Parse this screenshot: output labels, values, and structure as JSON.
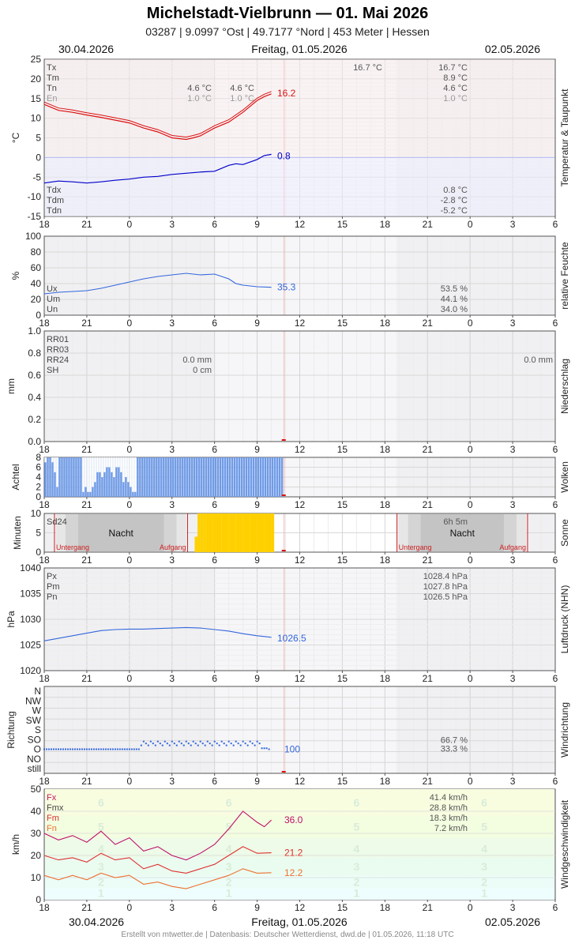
{
  "header": {
    "title": "Michelstadt-Vielbrunn  —  01. Mai 2026",
    "subtitle": "03287  |  9.0997 °Ost  |  49.7177 °Nord  |  453 Meter  |  Hessen"
  },
  "dates": {
    "left": "30.04.2026",
    "center": "Freitag, 01.05.2026",
    "right": "02.05.2026"
  },
  "footer": "Erstellt von mtwetter.de | Datenbasis: Deutscher Wetterdienst, dwd.de | 01.05.2026, 11:18 UTC",
  "x_ticks": [
    "18",
    "21",
    "0",
    "3",
    "6",
    "9",
    "12",
    "15",
    "18",
    "21",
    "0",
    "3",
    "6"
  ],
  "colors": {
    "temp": "#dd1111",
    "dew": "#0000cc",
    "hum": "#3366dd",
    "cloud": "#6f9be8",
    "sun": "#ffd000",
    "gust": "#c0106a",
    "wind_mean": "#e03030",
    "wind_min": "#ee7030"
  },
  "chart_data": [
    {
      "type": "line",
      "id": "temp",
      "ylabel": "°C",
      "side_label": "Temperatur & Taupunkt",
      "ylim": [
        -15,
        25
      ],
      "yticks": [
        "25",
        "20",
        "15",
        "10",
        "5",
        "0",
        "-5",
        "-10",
        "-15"
      ],
      "x_unit": "hours since 30.04.2026 18:00",
      "series": [
        {
          "name": "Temperatur",
          "x": [
            0,
            1,
            2,
            3,
            4,
            5,
            6,
            7,
            8,
            9,
            10,
            10.5,
            11,
            11.5,
            12,
            13,
            14,
            15,
            15.5,
            16
          ],
          "y": [
            13.5,
            12,
            11.5,
            10.8,
            10.2,
            9.5,
            8.8,
            7.5,
            6.5,
            5,
            4.6,
            5,
            5.5,
            6.5,
            7.5,
            9,
            11.5,
            14.5,
            15.5,
            16.2
          ]
        },
        {
          "name": "Taupunkt",
          "x": [
            0,
            1,
            2,
            3,
            4,
            5,
            6,
            7,
            8,
            9,
            10,
            11,
            12,
            13,
            13.5,
            14,
            15,
            15.5,
            16
          ],
          "y": [
            -6.5,
            -6,
            -6.2,
            -6.5,
            -6.2,
            -5.8,
            -5.5,
            -5,
            -4.8,
            -4.3,
            -4,
            -3.7,
            -3.5,
            -2,
            -1.6,
            -1.8,
            -0.5,
            0.5,
            0.8
          ]
        }
      ],
      "last_values": [
        "16.2",
        "0.8"
      ],
      "stats_top": [
        {
          "label": "Tx",
          "v1": "",
          "v2": "",
          "v3": "16.7 °C",
          "v4": "16.7 °C"
        },
        {
          "label": "Tm",
          "v1": "",
          "v2": "",
          "v3": "",
          "v4": "8.9 °C"
        },
        {
          "label": "Tn",
          "v1": "4.6 °C",
          "v2": "4.6 °C",
          "v3": "",
          "v4": "4.6 °C"
        },
        {
          "label": "En",
          "v1": "1.0 °C",
          "v2": "1.0 °C",
          "v3": "",
          "v4": "1.0 °C"
        }
      ],
      "stats_bottom": [
        {
          "label": "Tdx",
          "v": "0.8 °C"
        },
        {
          "label": "Tdm",
          "v": "-2.8 °C"
        },
        {
          "label": "Tdn",
          "v": "-5.2 °C"
        }
      ]
    },
    {
      "type": "line",
      "id": "hum",
      "ylabel": "%",
      "side_label": "relative Feuchte",
      "ylim": [
        0,
        100
      ],
      "yticks": [
        "100",
        "80",
        "60",
        "40",
        "20",
        "0"
      ],
      "series": [
        {
          "name": "Feuchte",
          "x": [
            0,
            1,
            2,
            3,
            4,
            5,
            6,
            7,
            8,
            9,
            10,
            11,
            12,
            13,
            13.5,
            14,
            15,
            16
          ],
          "y": [
            27,
            29,
            30,
            31,
            34,
            38,
            42,
            46,
            49,
            51,
            53,
            51,
            52,
            46,
            40,
            38,
            36,
            35.3
          ]
        }
      ],
      "last_values": [
        "35.3"
      ],
      "stats": [
        {
          "label": "Ux",
          "v": "53.5 %"
        },
        {
          "label": "Um",
          "v": "44.1 %"
        },
        {
          "label": "Un",
          "v": "34.0 %"
        }
      ]
    },
    {
      "type": "bar",
      "id": "rain",
      "ylabel": "mm",
      "side_label": "Niederschlag",
      "ylim": [
        0,
        1.0
      ],
      "yticks": [
        "1.0",
        "0.8",
        "0.6",
        "0.4",
        "0.2",
        "0.0"
      ],
      "labels": [
        "RR01",
        "RR03",
        "RR24",
        "SH"
      ],
      "values_mid": [
        "",
        "",
        "0.0 mm",
        "0 cm"
      ],
      "values_right": [
        "",
        "",
        "0.0 mm",
        ""
      ]
    },
    {
      "type": "bar",
      "id": "cloud",
      "ylabel": "Achtel",
      "side_label": "Wolken",
      "ylim": [
        0,
        8
      ],
      "yticks": [
        "8",
        "6",
        "4",
        "2",
        "0"
      ],
      "x_step_hours": 0.1667,
      "values": [
        7,
        8,
        8,
        7,
        5,
        2,
        0,
        0,
        0,
        0,
        0,
        0,
        0,
        0,
        0,
        0,
        1,
        2,
        1,
        1,
        2,
        3,
        5,
        5,
        4,
        5,
        6,
        6,
        5,
        4,
        6,
        6,
        5,
        3,
        4,
        3,
        2,
        1,
        1,
        0,
        0,
        0,
        0,
        0,
        0,
        0,
        0,
        0,
        0,
        0,
        0,
        0,
        0,
        0,
        0,
        0,
        0,
        0,
        0,
        0,
        0,
        0,
        0,
        0,
        0,
        0,
        0,
        0,
        0,
        0,
        0,
        0,
        0,
        0,
        0,
        0,
        0,
        0,
        0,
        0,
        0,
        0,
        0,
        0,
        0,
        0,
        0,
        0,
        0,
        0,
        0,
        0,
        0,
        0,
        0,
        0,
        0,
        0,
        0,
        0,
        0
      ],
      "bar_tops": [
        8,
        8,
        8,
        8,
        8,
        8,
        8,
        8,
        8,
        8,
        8,
        8,
        8,
        8,
        8,
        8,
        8,
        8,
        8,
        8,
        8,
        8,
        8,
        8,
        8,
        8,
        8,
        8,
        8,
        8,
        8,
        8,
        8,
        8,
        8,
        8,
        8,
        8,
        8,
        8,
        8,
        8,
        8,
        8,
        8,
        8,
        8,
        8,
        8,
        8,
        8,
        8,
        8,
        8,
        8,
        8,
        8,
        8,
        8,
        8,
        8,
        8,
        8,
        8,
        8,
        8,
        8,
        8,
        8,
        8,
        8,
        8,
        8,
        8,
        8,
        8,
        8,
        8,
        8,
        8,
        8,
        8,
        8,
        8,
        8,
        8,
        8,
        8,
        8,
        8,
        8,
        8,
        8,
        8,
        8,
        8,
        8,
        8,
        8,
        8,
        8,
        8
      ]
    },
    {
      "type": "bar",
      "id": "sun",
      "ylabel": "Minuten",
      "side_label": "Sonne",
      "ylim": [
        0,
        10
      ],
      "yticks": [
        "10",
        "5",
        "0"
      ],
      "sd_label": "Sd24",
      "sd_value": "6h 5m",
      "night_label": "Nacht",
      "sunset_label": "Untergang",
      "sunrise_label": "Aufgang",
      "night_periods": [
        [
          0.72,
          10.1
        ],
        [
          24.85,
          34.05
        ]
      ],
      "sun_minutes": {
        "x": [
          10.6,
          10.8,
          11.0,
          11.2,
          11.4,
          11.6,
          11.8,
          12,
          12.5,
          13,
          13.5,
          14,
          14.5,
          15,
          15.5,
          16.0,
          16.2
        ],
        "y": [
          0,
          4,
          10,
          10,
          10,
          10,
          10,
          10,
          10,
          10,
          10,
          10,
          10,
          10,
          10,
          10,
          10
        ]
      }
    },
    {
      "type": "line",
      "id": "press",
      "ylabel": "hPa",
      "side_label": "Luftdruck (NHN)",
      "ylim": [
        1020,
        1040
      ],
      "yticks": [
        "1040",
        "1035",
        "1030",
        "1025",
        "1020"
      ],
      "series": [
        {
          "name": "Luftdruck",
          "x": [
            0,
            1,
            2,
            3,
            4,
            5,
            6,
            7,
            8,
            9,
            10,
            11,
            12,
            13,
            14,
            15,
            16
          ],
          "y": [
            1025.8,
            1026.3,
            1026.8,
            1027.3,
            1027.8,
            1028.0,
            1028.1,
            1028.1,
            1028.2,
            1028.3,
            1028.4,
            1028.3,
            1028.0,
            1027.7,
            1027.2,
            1026.8,
            1026.5
          ]
        }
      ],
      "last_values": [
        "1026.5"
      ],
      "stats": [
        {
          "label": "Px",
          "v": "1028.4 hPa"
        },
        {
          "label": "Pm",
          "v": "1027.8 hPa"
        },
        {
          "label": "Pn",
          "v": "1026.5 hPa"
        }
      ]
    },
    {
      "type": "scatter",
      "id": "dir",
      "ylabel": "Richtung",
      "side_label": "Windrichtung",
      "categories": [
        "N",
        "NW",
        "W",
        "SW",
        "S",
        "SO",
        "O",
        "NO",
        "still"
      ],
      "series": [
        {
          "name": "Richtung",
          "x": [
            0,
            2,
            4,
            6,
            7,
            7.5,
            8,
            9,
            10,
            11,
            12,
            13,
            14,
            15,
            15.5,
            16
          ],
          "y": [
            2,
            2,
            2,
            2,
            2,
            2.2,
            2.1,
            2.2,
            2.1,
            2.2,
            2.1,
            2.2,
            2.1,
            2.2,
            2.05,
            2
          ]
        }
      ],
      "last_values": [
        "100"
      ],
      "stats": [
        "66.7 %",
        "33.3 %"
      ]
    },
    {
      "type": "line",
      "id": "wind",
      "ylabel": "km/h",
      "side_label": "Windgeschwindigkeit",
      "ylim": [
        0,
        50
      ],
      "yticks": [
        "50",
        "40",
        "30",
        "20",
        "10",
        "0"
      ],
      "bft_labels": [
        "1",
        "2",
        "3",
        "4",
        "5",
        "6"
      ],
      "series": [
        {
          "name": "Fx",
          "x": [
            0,
            1,
            2,
            3,
            4,
            5,
            6,
            7,
            8,
            9,
            10,
            11,
            12,
            13,
            14,
            15,
            15.5,
            16
          ],
          "y": [
            30,
            27,
            29,
            26,
            31,
            25,
            28,
            22,
            24,
            20,
            18,
            21,
            25,
            32,
            40,
            35,
            33,
            36
          ]
        },
        {
          "name": "Fm",
          "x": [
            0,
            1,
            2,
            3,
            4,
            5,
            6,
            7,
            8,
            9,
            10,
            11,
            12,
            13,
            14,
            15,
            16
          ],
          "y": [
            20,
            18,
            19,
            17,
            21,
            18,
            19,
            14,
            16,
            13,
            12,
            14,
            16,
            20,
            24,
            21,
            21.2
          ]
        },
        {
          "name": "Fn",
          "x": [
            0,
            1,
            2,
            3,
            4,
            5,
            6,
            7,
            8,
            9,
            10,
            11,
            12,
            13,
            14,
            15,
            16
          ],
          "y": [
            11,
            9,
            11,
            9,
            12,
            10,
            11,
            7,
            8,
            6,
            5,
            7,
            9,
            11,
            14,
            12,
            12.2
          ]
        }
      ],
      "last_values": [
        "36.0",
        "21.2",
        "12.2"
      ],
      "stats": [
        {
          "label": "Fx",
          "v": "41.4 km/h"
        },
        {
          "label": "Fmx",
          "v": "28.8 km/h"
        },
        {
          "label": "Fm",
          "v": "18.3 km/h"
        },
        {
          "label": "Fn",
          "v": "7.2 km/h"
        }
      ]
    }
  ]
}
